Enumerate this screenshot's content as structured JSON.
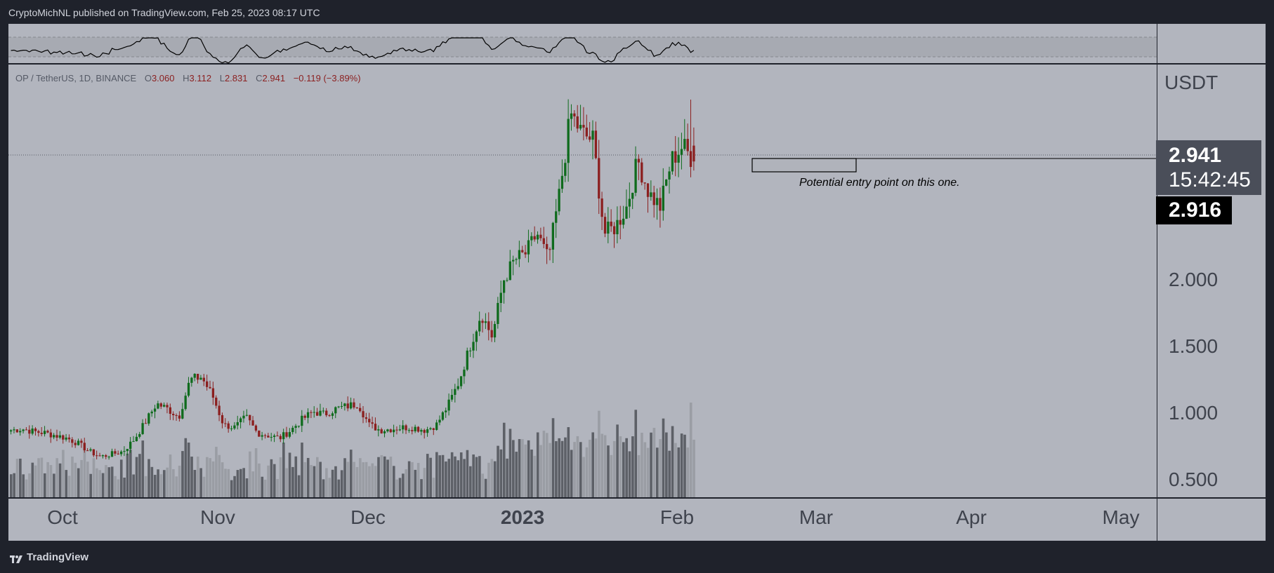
{
  "header": {
    "published": "CryptoMichNL published on TradingView.com, Feb 25, 2023 08:17 UTC"
  },
  "footer": {
    "brand": "TradingView"
  },
  "legend": {
    "symbol": "OP / TetherUS, 1D, BINANCE",
    "open_label": "O",
    "open": "3.060",
    "high_label": "H",
    "high": "3.112",
    "low_label": "L",
    "low": "2.831",
    "close_label": "C",
    "close": "2.941",
    "change": "−0.119 (−3.89%)"
  },
  "price_axis": {
    "unit": "USDT",
    "ticks": [
      "2.000",
      "1.500",
      "1.000",
      "0.500"
    ]
  },
  "last_price": {
    "price": "2.941",
    "countdown": "15:42:45"
  },
  "crosshair_price": "2.916",
  "annotation": "Potential entry point on this one.",
  "colors": {
    "up": "#0f6b1d",
    "down": "#8b1f1f",
    "panel": "#b2b5be",
    "volume_up": "#5d6067",
    "volume_down": "#9a9da4"
  },
  "chart_data": {
    "type": "candlestick",
    "x_labels": [
      "Oct",
      "Nov",
      "Dec",
      "2023",
      "Feb",
      "Mar",
      "Apr",
      "May"
    ],
    "y_ticks": [
      0.5,
      1.0,
      1.5,
      2.0
    ],
    "ylim": [
      0.36,
      3.52
    ],
    "series": [
      {
        "name": "OP / TetherUS",
        "last_open": 3.06,
        "last_high": 3.112,
        "last_low": 2.831,
        "last_close": 2.941
      }
    ],
    "close_path": [
      0.92,
      0.93,
      0.91,
      0.9,
      0.88,
      0.86,
      0.82,
      0.76,
      0.72,
      0.74,
      0.76,
      0.85,
      0.98,
      1.12,
      1.08,
      1.02,
      1.3,
      1.32,
      1.18,
      0.96,
      0.94,
      1.02,
      0.9,
      0.88,
      0.86,
      0.92,
      1.0,
      1.06,
      1.04,
      1.08,
      1.1,
      1.12,
      0.96,
      0.92,
      0.93,
      0.94,
      0.94,
      0.92,
      0.96,
      1.1,
      1.28,
      1.55,
      1.8,
      1.62,
      2.05,
      2.2,
      2.25,
      2.4,
      2.2,
      2.7,
      3.3,
      3.15,
      3.1,
      2.4,
      2.45,
      2.6,
      2.95,
      2.7,
      2.6,
      2.95,
      3.06,
      2.941
    ]
  }
}
